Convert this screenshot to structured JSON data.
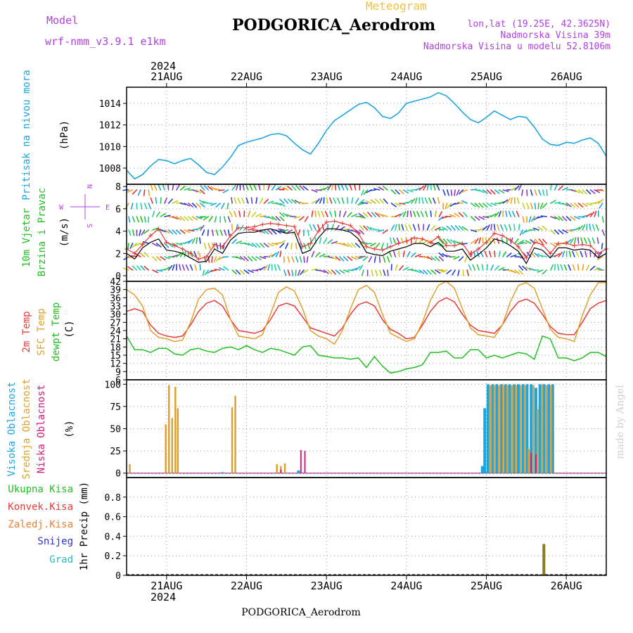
{
  "header": {
    "model_label": "Model",
    "model_name": "wrf-nmm_v3.9.1 e1km",
    "product": "Meteogram",
    "station": "PODGORICA_Aerodrom",
    "lonlat": "lon,lat (19.25E, 42.3625N)",
    "elevation": "Nadmorska Visina 39m",
    "model_elevation": "Nadmorska Visina u modelu 52.8106m",
    "watermark": "made by Angel",
    "footer": "PODGORICA_Aerodrom"
  },
  "colors": {
    "pressure": "#1ea5e0",
    "temp2m": "#e83a3a",
    "sfc_temp": "#e0a030",
    "dewpoint": "#22c022",
    "wind_mean": "#000000",
    "gust": "#e83a3a",
    "high_cloud": "#1ea5e0",
    "mid_cloud": "#e0a030",
    "low_cloud": "#d0207a",
    "precip": "#8a7a20",
    "header_purple": "#b040e0",
    "header_orange": "#f0c040",
    "legend_green": "#22c022",
    "legend_red": "#e83a3a",
    "legend_orange": "#f08030",
    "legend_blue": "#3030e0",
    "legend_cyan": "#20c0c0"
  },
  "axes": {
    "year": "2024",
    "days": [
      "21AUG",
      "22AUG",
      "23AUG",
      "24AUG",
      "25AUG",
      "26AUG"
    ],
    "day_positions": [
      1,
      2,
      3,
      4,
      5,
      6
    ]
  },
  "chart_data": [
    {
      "id": "pressure",
      "type": "line",
      "ylabel_lines": [
        "Pritisak na nivou mora"
      ],
      "unit": "(hPa)",
      "xlim": [
        0.5,
        6.5
      ],
      "ylim": [
        1006.5,
        1015.5
      ],
      "yticks": [
        1008,
        1010,
        1012,
        1014
      ],
      "x": [
        0.5,
        0.6,
        0.7,
        0.8,
        0.9,
        1.0,
        1.1,
        1.2,
        1.3,
        1.4,
        1.5,
        1.6,
        1.7,
        1.8,
        1.9,
        2.0,
        2.1,
        2.2,
        2.3,
        2.4,
        2.5,
        2.6,
        2.7,
        2.8,
        2.9,
        3.0,
        3.1,
        3.2,
        3.3,
        3.4,
        3.5,
        3.6,
        3.7,
        3.8,
        3.9,
        4.0,
        4.1,
        4.2,
        4.3,
        4.4,
        4.5,
        4.6,
        4.7,
        4.8,
        4.9,
        5.0,
        5.1,
        5.2,
        5.3,
        5.4,
        5.5,
        5.6,
        5.7,
        5.8,
        5.9,
        6.0,
        6.1,
        6.2,
        6.3,
        6.4,
        6.5
      ],
      "series": [
        {
          "values": [
            1007.8,
            1007.0,
            1007.4,
            1008.2,
            1008.8,
            1008.7,
            1008.4,
            1008.7,
            1008.9,
            1008.3,
            1007.6,
            1007.4,
            1008.1,
            1009.0,
            1010.1,
            1010.4,
            1010.6,
            1010.8,
            1011.1,
            1011.2,
            1011.0,
            1010.3,
            1009.7,
            1009.3,
            1010.3,
            1011.5,
            1012.4,
            1012.9,
            1013.4,
            1013.9,
            1014.1,
            1013.6,
            1012.8,
            1012.6,
            1013.1,
            1014.0,
            1014.2,
            1014.4,
            1014.6,
            1015.0,
            1014.7,
            1014.0,
            1013.2,
            1012.5,
            1012.2,
            1012.7,
            1013.3,
            1012.9,
            1012.5,
            1012.8,
            1012.7,
            1011.8,
            1010.7,
            1010.2,
            1010.1,
            1010.4,
            1010.3,
            1010.6,
            1010.8,
            1010.3,
            1009.1
          ]
        }
      ]
    },
    {
      "id": "wind",
      "type": "line",
      "ylabel_lines": [
        "10m Vjetar",
        "Brzina i Pravac"
      ],
      "unit": "(m/s)",
      "compass": {
        "n": "N",
        "s": "S",
        "e": "E",
        "w": "W"
      },
      "xlim": [
        0.5,
        6.5
      ],
      "ylim": [
        -0.5,
        8.2
      ],
      "yticks": [
        0,
        2,
        4,
        6,
        8
      ],
      "x": [
        0.5,
        0.6,
        0.7,
        0.8,
        0.9,
        1.0,
        1.1,
        1.2,
        1.3,
        1.4,
        1.5,
        1.6,
        1.7,
        1.8,
        1.9,
        2.0,
        2.1,
        2.2,
        2.3,
        2.4,
        2.5,
        2.6,
        2.7,
        2.8,
        2.9,
        3.0,
        3.1,
        3.2,
        3.3,
        3.4,
        3.5,
        3.6,
        3.7,
        3.8,
        3.9,
        4.0,
        4.1,
        4.2,
        4.3,
        4.4,
        4.5,
        4.6,
        4.7,
        4.8,
        4.9,
        5.0,
        5.1,
        5.2,
        5.3,
        5.4,
        5.5,
        5.6,
        5.7,
        5.8,
        5.9,
        6.0,
        6.1,
        6.2,
        6.3,
        6.4,
        6.5
      ],
      "series": [
        {
          "name": "",
          "values": [
            2.0,
            1.5,
            2.5,
            3.0,
            3.3,
            2.3,
            2.2,
            2.0,
            1.6,
            1.2,
            1.3,
            2.4,
            2.0,
            3.2,
            3.8,
            3.9,
            3.9,
            4.1,
            4.2,
            4.0,
            3.8,
            3.9,
            2.0,
            2.3,
            3.4,
            4.2,
            4.2,
            4.1,
            3.9,
            3.3,
            2.1,
            1.9,
            1.8,
            2.2,
            2.4,
            2.6,
            2.9,
            2.9,
            2.6,
            3.0,
            2.2,
            2.2,
            2.4,
            1.4,
            1.9,
            2.5,
            3.3,
            3.1,
            2.7,
            2.2,
            1.1,
            2.5,
            2.3,
            1.6,
            2.5,
            2.5,
            2.3,
            2.4,
            2.3,
            1.6,
            2.0
          ]
        },
        {
          "name": "",
          "values": [
            2.4,
            2.0,
            2.8,
            3.6,
            4.2,
            3.0,
            2.7,
            2.4,
            2.0,
            1.5,
            1.7,
            2.8,
            2.6,
            3.6,
            4.3,
            4.3,
            4.4,
            4.6,
            4.7,
            4.6,
            4.5,
            4.4,
            2.6,
            2.9,
            4.0,
            4.8,
            4.9,
            4.7,
            4.5,
            3.8,
            2.6,
            2.4,
            2.3,
            2.6,
            2.9,
            3.1,
            3.4,
            3.3,
            3.0,
            3.5,
            2.7,
            2.7,
            2.9,
            1.9,
            2.4,
            3.0,
            3.8,
            3.6,
            3.2,
            2.6,
            1.6,
            3.0,
            2.8,
            2.0,
            2.9,
            2.9,
            2.7,
            2.8,
            2.7,
            2.0,
            2.4
          ]
        }
      ],
      "barb_colors": [
        "#1ea5e0",
        "#20d0a0",
        "#30c060",
        "#22c022",
        "#8a3ac0",
        "#2040d0",
        "#c0d020",
        "#f0a020",
        "#e03030"
      ]
    },
    {
      "id": "temperature",
      "type": "line",
      "ylabel_lines": [
        "2m Temp",
        "SFC Temp",
        "dewpt Temp"
      ],
      "unit": "(C)",
      "xlim": [
        0.5,
        6.5
      ],
      "ylim": [
        6,
        42
      ],
      "yticks": [
        6,
        9,
        12,
        15,
        18,
        21,
        24,
        27,
        30,
        33,
        36,
        39,
        42
      ],
      "x": [
        0.5,
        0.6,
        0.7,
        0.8,
        0.9,
        1.0,
        1.1,
        1.2,
        1.3,
        1.4,
        1.5,
        1.6,
        1.7,
        1.8,
        1.9,
        2.0,
        2.1,
        2.2,
        2.3,
        2.4,
        2.5,
        2.6,
        2.7,
        2.8,
        2.9,
        3.0,
        3.1,
        3.2,
        3.3,
        3.4,
        3.5,
        3.6,
        3.7,
        3.8,
        3.9,
        4.0,
        4.1,
        4.2,
        4.3,
        4.4,
        4.5,
        4.6,
        4.7,
        4.8,
        4.9,
        5.0,
        5.1,
        5.2,
        5.3,
        5.4,
        5.5,
        5.6,
        5.7,
        5.8,
        5.9,
        6.0,
        6.1,
        6.2,
        6.3,
        6.4,
        6.5
      ],
      "series": [
        {
          "name": "2m Temp",
          "values": [
            31,
            32,
            31,
            26,
            23,
            22,
            21.5,
            22,
            26,
            31,
            34,
            35,
            33,
            28,
            24,
            23.5,
            23,
            24,
            28,
            33,
            34,
            33,
            29,
            25,
            24,
            23,
            22,
            25,
            30,
            33.5,
            34.5,
            33,
            28,
            24.5,
            23,
            21,
            21.5,
            26,
            31,
            34.5,
            36,
            34.5,
            30,
            26,
            24,
            23.5,
            23,
            26,
            31,
            34.5,
            35.5,
            34,
            30,
            25.5,
            23,
            22.5,
            22.5,
            27,
            32,
            34,
            35
          ]
        },
        {
          "name": "SFC Temp",
          "values": [
            39,
            37,
            33,
            24,
            21.5,
            21,
            20,
            20.5,
            27,
            35.5,
            39,
            39.5,
            37,
            28,
            22,
            21.5,
            21,
            22.5,
            30,
            38,
            40,
            38.5,
            32,
            24,
            22,
            21,
            19,
            24,
            32,
            39,
            40.5,
            38,
            30,
            23,
            21.5,
            20,
            21,
            27,
            35,
            40.5,
            42,
            39.5,
            32,
            25,
            22.5,
            22,
            21.5,
            26,
            34.5,
            40.5,
            41.5,
            39.5,
            32,
            24.5,
            21.5,
            21,
            20,
            29.5,
            37,
            41.5,
            41.5
          ]
        },
        {
          "name": "dewpt Temp",
          "values": [
            22,
            17,
            17,
            16,
            17.5,
            17.5,
            15.5,
            15,
            17,
            17.5,
            16.5,
            16,
            17.5,
            18,
            17,
            18.5,
            17,
            16,
            17.5,
            17,
            16,
            15,
            18,
            18.5,
            15,
            14.5,
            14,
            14,
            13.5,
            14,
            10.5,
            14.5,
            11,
            8.5,
            9,
            10,
            10.5,
            11.5,
            16,
            16,
            16.5,
            14,
            14,
            17,
            17,
            14,
            15,
            14,
            15,
            16,
            15.5,
            13.5,
            22,
            21,
            14,
            14,
            13,
            14,
            16,
            16,
            14.5
          ]
        }
      ]
    },
    {
      "id": "clouds",
      "type": "bar",
      "ylabel_lines": [
        "Visoka Oblacnost",
        "Srednja Oblacnost",
        "Niska Oblacnost"
      ],
      "unit": "(%)",
      "xlim": [
        0.5,
        6.5
      ],
      "ylim": [
        -5,
        105
      ],
      "yticks": [
        0,
        25,
        50,
        75,
        100
      ],
      "series": [
        {
          "name": "Visoka Oblacnost",
          "bars": [
            [
              1.7,
              1
            ],
            [
              2.65,
              3
            ],
            [
              4.95,
              8
            ],
            [
              4.98,
              73
            ],
            [
              5.02,
              100
            ],
            [
              5.08,
              100
            ],
            [
              5.13,
              100
            ],
            [
              5.19,
              100
            ],
            [
              5.24,
              100
            ],
            [
              5.29,
              100
            ],
            [
              5.35,
              100
            ],
            [
              5.4,
              100
            ],
            [
              5.46,
              100
            ],
            [
              5.51,
              100
            ],
            [
              5.56,
              100
            ],
            [
              5.62,
              96
            ],
            [
              5.67,
              100
            ],
            [
              5.72,
              100
            ],
            [
              5.78,
              100
            ],
            [
              5.83,
              100
            ]
          ]
        },
        {
          "name": "Srednja Oblacnost",
          "bars": [
            [
              0.54,
              10
            ],
            [
              0.99,
              55
            ],
            [
              1.03,
              99
            ],
            [
              1.07,
              62
            ],
            [
              1.11,
              97
            ],
            [
              1.14,
              73
            ],
            [
              1.82,
              74
            ],
            [
              1.86,
              87
            ],
            [
              2.38,
              10
            ],
            [
              2.43,
              8
            ],
            [
              2.48,
              11
            ],
            [
              5.05,
              99
            ],
            [
              5.1,
              99
            ],
            [
              5.16,
              99
            ],
            [
              5.21,
              99
            ],
            [
              5.26,
              99
            ],
            [
              5.32,
              99
            ],
            [
              5.37,
              99
            ],
            [
              5.43,
              99
            ],
            [
              5.48,
              99
            ],
            [
              5.53,
              27
            ],
            [
              5.59,
              99
            ],
            [
              5.64,
              72
            ],
            [
              5.7,
              99
            ],
            [
              5.75,
              99
            ],
            [
              5.81,
              99
            ]
          ]
        },
        {
          "name": "Niska Oblacnost",
          "bars": [
            [
              2.43,
              4
            ],
            [
              2.68,
              26
            ],
            [
              2.73,
              25
            ],
            [
              5.56,
              23
            ],
            [
              5.62,
              21
            ]
          ]
        }
      ]
    },
    {
      "id": "precip",
      "type": "bar",
      "ylabel_lines": [
        "1hr Precip (mm)"
      ],
      "unit": "",
      "legend": [
        {
          "name": "Ukupna Kisa",
          "color": "#22c022"
        },
        {
          "name": "Konvek.Kisa",
          "color": "#e83a3a"
        },
        {
          "name": "Zaledj.Kisa",
          "color": "#f08030"
        },
        {
          "name": "Snijeg",
          "color": "#3030e0"
        },
        {
          "name": "Grad",
          "color": "#20c0c0"
        }
      ],
      "xlim": [
        0.5,
        6.5
      ],
      "ylim": [
        0,
        1.0
      ],
      "yticks": [
        0,
        0.2,
        0.4,
        0.6,
        0.8
      ],
      "ytick_labels": [
        "0",
        "0.2",
        "0.4",
        "0.6",
        "0.8"
      ],
      "series": [
        {
          "name": "1hr Precip",
          "bars": [
            [
              2.72,
              0.01
            ],
            [
              5.68,
              0.01
            ],
            [
              5.72,
              0.32
            ]
          ]
        }
      ]
    }
  ]
}
